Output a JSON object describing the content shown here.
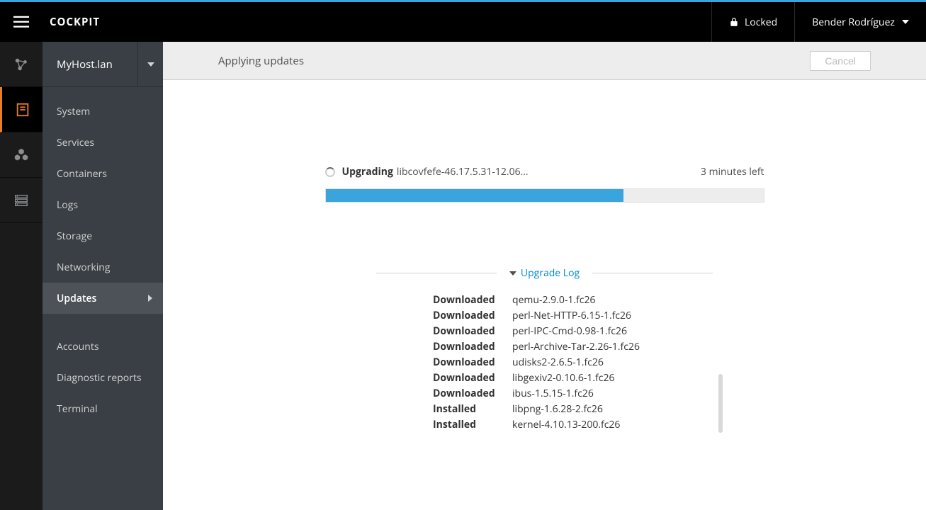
{
  "brand": "COCKPIT",
  "header": {
    "locked_label": "Locked",
    "user_name": "Bender Rodríguez"
  },
  "host": {
    "name": "MyHost.lan"
  },
  "nav": {
    "group1": [
      "System",
      "Services",
      "Containers",
      "Logs",
      "Storage",
      "Networking",
      "Updates"
    ],
    "group2": [
      "Accounts",
      "Diagnostic reports",
      "Terminal"
    ],
    "active_index": 6
  },
  "page": {
    "title": "Applying updates",
    "cancel_label": "Cancel"
  },
  "progress": {
    "action": "Upgrading",
    "package": "libcovfefe-46.17.5.31-12.06...",
    "time_left": "3 minutes left",
    "percent": 68,
    "bar_color": "#39a5dc",
    "track_color": "#ededed"
  },
  "log": {
    "title": "Upgrade Log",
    "entries": [
      {
        "status": "Downloaded",
        "pkg": "qemu-2.9.0-1.fc26"
      },
      {
        "status": "Downloaded",
        "pkg": "perl-Net-HTTP-6.15-1.fc26"
      },
      {
        "status": "Downloaded",
        "pkg": "perl-IPC-Cmd-0.98-1.fc26"
      },
      {
        "status": "Downloaded",
        "pkg": "perl-Archive-Tar-2.26-1.fc26"
      },
      {
        "status": "Downloaded",
        "pkg": "udisks2-2.6.5-1.fc26"
      },
      {
        "status": "Downloaded",
        "pkg": "libgexiv2-0.10.6-1.fc26"
      },
      {
        "status": "Downloaded",
        "pkg": "ibus-1.5.15-1.fc26"
      },
      {
        "status": "Installed",
        "pkg": "libpng-1.6.28-2.fc26"
      },
      {
        "status": "Installed",
        "pkg": "kernel-4.10.13-200.fc26"
      }
    ]
  },
  "colors": {
    "accent": "#39a5dc",
    "orange": "#e77f26",
    "sidebar_bg": "#393f44",
    "rail_bg": "#1b1b1b",
    "link": "#0088ce"
  }
}
